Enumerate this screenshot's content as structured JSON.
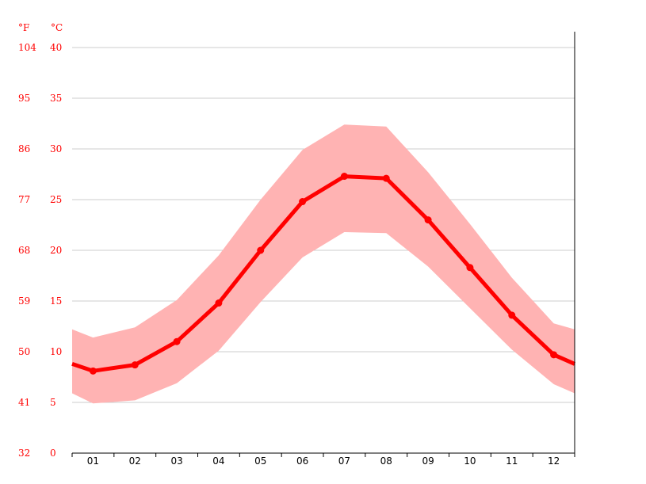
{
  "colors": {
    "line": "#ff0000",
    "band": "#ffb3b3",
    "grid": "#cccccc",
    "axis": "#000000",
    "label": "#ff0000"
  },
  "chart_data": {
    "type": "line",
    "title": "",
    "xlabel": "",
    "ylabel": "",
    "unit_f": "°F",
    "unit_c": "°C",
    "categories": [
      "01",
      "02",
      "03",
      "04",
      "05",
      "06",
      "07",
      "08",
      "09",
      "10",
      "11",
      "12"
    ],
    "yticks_c": [
      "0",
      "5",
      "10",
      "15",
      "20",
      "25",
      "30",
      "35",
      "40"
    ],
    "yticks_f": [
      "32",
      "41",
      "50",
      "59",
      "68",
      "77",
      "86",
      "95",
      "104"
    ],
    "ylim": [
      0,
      40
    ],
    "grid": true,
    "series": [
      {
        "role": "average",
        "values": [
          8.1,
          8.7,
          11.0,
          14.8,
          20.0,
          24.8,
          27.3,
          27.1,
          23.0,
          18.3,
          13.6,
          9.7
        ]
      },
      {
        "role": "band-high",
        "values": [
          11.4,
          12.4,
          15.1,
          19.5,
          25.0,
          29.9,
          32.4,
          32.2,
          27.7,
          22.6,
          17.3,
          12.8
        ]
      },
      {
        "role": "band-low",
        "values": [
          4.9,
          5.2,
          6.9,
          10.1,
          14.9,
          19.3,
          21.8,
          21.7,
          18.4,
          14.3,
          10.2,
          6.8
        ]
      }
    ],
    "edges": {
      "left": {
        "average": 8.8,
        "high": 12.2,
        "low": 5.9
      },
      "right": {
        "average": 8.8,
        "high": 12.2,
        "low": 5.9
      }
    }
  }
}
